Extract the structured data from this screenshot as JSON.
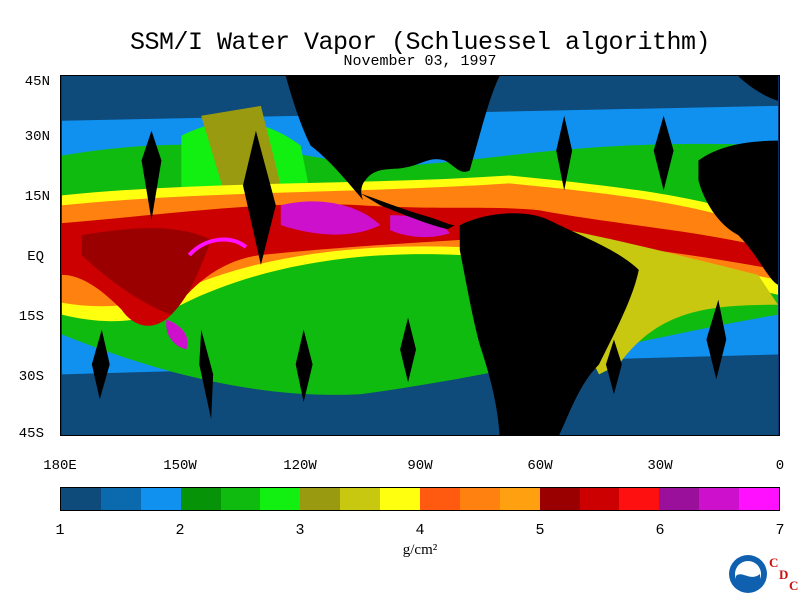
{
  "title": "SSM/I Water Vapor (Schluessel algorithm)",
  "subtitle": "November 03, 1997",
  "lat_labels": [
    "45N",
    "30N",
    "15N",
    "EQ",
    "15S",
    "30S",
    "45S"
  ],
  "lon_labels": [
    "180E",
    "150W",
    "120W",
    "90W",
    "60W",
    "30W",
    "0"
  ],
  "colorbar": {
    "labels": [
      "1",
      "2",
      "3",
      "4",
      "5",
      "6",
      "7"
    ],
    "units": "g/cm²",
    "colors": [
      "#0e4a7a",
      "#0a6aad",
      "#1090ef",
      "#079307",
      "#10bb10",
      "#11f011",
      "#9a9a10",
      "#c8c810",
      "#ffff10",
      "#ff5a10",
      "#ff8210",
      "#ffa010",
      "#9a0000",
      "#cc0000",
      "#ff1010",
      "#9a109a",
      "#cc10cc",
      "#ff10ff"
    ]
  },
  "logo": {
    "text": "NOAA",
    "icon": "noaa-logo",
    "cdc": [
      "C",
      "D",
      "C"
    ]
  }
}
